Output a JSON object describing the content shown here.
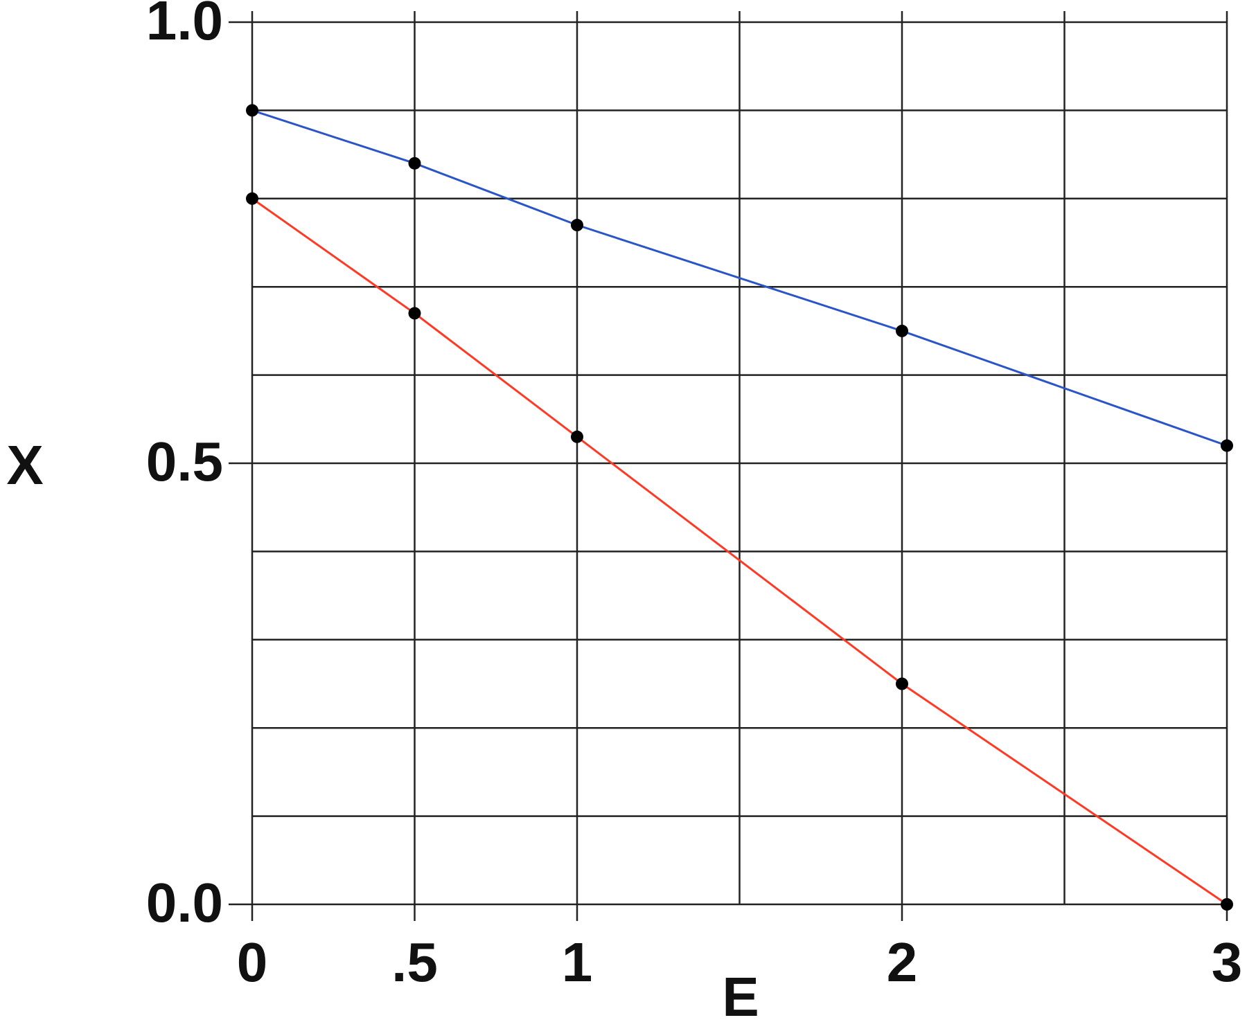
{
  "chart_data": {
    "type": "line",
    "x_label": "E",
    "y_label": "X",
    "x": [
      0,
      0.5,
      1,
      2,
      3
    ],
    "series": [
      {
        "color": "#2a55c8",
        "values": [
          0.9,
          0.84,
          0.77,
          0.65,
          0.52
        ]
      },
      {
        "color": "#ff3a24",
        "values": [
          0.8,
          0.67,
          0.53,
          0.25,
          0.0
        ]
      }
    ],
    "marker_color": "#000000",
    "xlim": [
      0,
      3
    ],
    "ylim": [
      0,
      1
    ],
    "xticks": [
      0,
      {
        "value": 0.5,
        "label": ".5"
      },
      1,
      2,
      3
    ],
    "yticks": [
      {
        "value": 0,
        "label": "0.0"
      },
      {
        "value": 0.5,
        "label": "0.5"
      },
      {
        "value": 1,
        "label": "1.0"
      }
    ],
    "xgrid": [
      0,
      0.5,
      1,
      1.5,
      2,
      2.5,
      3
    ],
    "ygrid": [
      0,
      0.1,
      0.2,
      0.3,
      0.4,
      0.5,
      0.6,
      0.7,
      0.8,
      0.9,
      1
    ],
    "grid": true
  }
}
